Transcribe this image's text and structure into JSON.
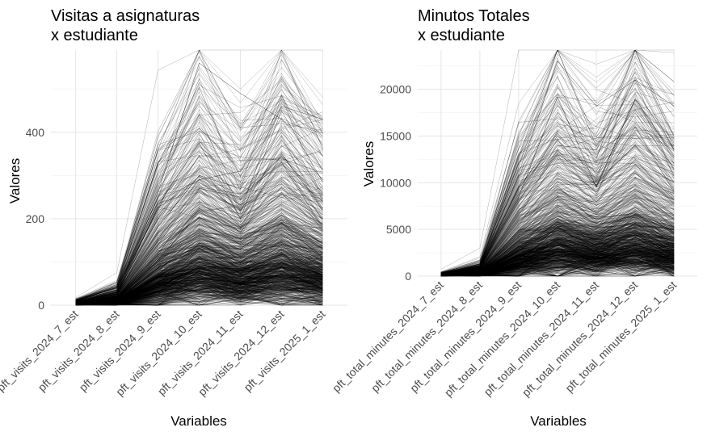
{
  "chart_data": [
    {
      "type": "line",
      "title": [
        "Visitas a asignaturas",
        "x estudiante"
      ],
      "xlabel": "Variables",
      "ylabel": "Valores",
      "categories": [
        "pft_visits_2024_7_est",
        "pft_visits_2024_8_est",
        "pft_visits_2024_9_est",
        "pft_visits_2024_10_est",
        "pft_visits_2024_11_est",
        "pft_visits_2024_12_est",
        "pft_visits_2025_1_est"
      ],
      "ylim": [
        0,
        590
      ],
      "yticks": [
        0,
        200,
        400
      ],
      "ytick_labels": [
        "0",
        "200",
        "400"
      ],
      "grid": true,
      "legend": "none",
      "line_color": "#000000",
      "n_lines_approx": 900,
      "series_representative": [
        {
          "values": [
            3,
            30,
            260,
            560,
            490,
            430,
            345
          ]
        },
        {
          "values": [
            3,
            35,
            240,
            290,
            310,
            460,
            430
          ]
        },
        {
          "values": [
            2,
            20,
            230,
            375,
            200,
            450,
            285
          ]
        },
        {
          "values": [
            2,
            25,
            180,
            300,
            270,
            400,
            290
          ]
        },
        {
          "values": [
            2,
            15,
            150,
            280,
            180,
            350,
            220
          ]
        },
        {
          "values": [
            2,
            18,
            140,
            270,
            250,
            330,
            180
          ]
        },
        {
          "values": [
            1,
            12,
            120,
            240,
            200,
            260,
            200
          ]
        }
      ],
      "band_median": [
        2,
        8,
        55,
        90,
        70,
        95,
        70
      ],
      "band_p90": [
        4,
        15,
        110,
        160,
        120,
        170,
        130
      ]
    },
    {
      "type": "line",
      "title": [
        "Minutos Totales",
        "x estudiante"
      ],
      "xlabel": "Variables",
      "ylabel": "Valores",
      "categories": [
        "pft_total_minutes_2024_7_est",
        "pft_total_minutes_2024_8_est",
        "pft_total_minutes_2024_9_est",
        "pft_total_minutes_2024_10_est",
        "pft_total_minutes_2024_11_est",
        "pft_total_minutes_2024_12_est",
        "pft_total_minutes_2025_1_est"
      ],
      "ylim": [
        0,
        24200
      ],
      "yticks": [
        0,
        5000,
        10000,
        15000,
        20000
      ],
      "ytick_labels": [
        "0",
        "5000",
        "10000",
        "15000",
        "20000"
      ],
      "grid": true,
      "legend": "none",
      "line_color": "#000000",
      "n_lines_approx": 900,
      "series_representative": [
        {
          "values": [
            150,
            1000,
            11000,
            23000,
            18200,
            21000,
            18200
          ]
        },
        {
          "values": [
            120,
            900,
            8500,
            19200,
            9500,
            19000,
            12800
          ]
        },
        {
          "values": [
            100,
            800,
            8000,
            14000,
            13500,
            21000,
            13500
          ]
        },
        {
          "values": [
            100,
            700,
            7500,
            13000,
            10500,
            17500,
            11500
          ]
        },
        {
          "values": [
            90,
            600,
            6500,
            12500,
            9000,
            16000,
            9000
          ]
        },
        {
          "values": [
            80,
            500,
            5500,
            11000,
            8000,
            12500,
            10000
          ]
        }
      ],
      "band_median": [
        60,
        250,
        2200,
        3500,
        2800,
        3800,
        2800
      ],
      "band_p90": [
        120,
        450,
        4500,
        7000,
        5200,
        7500,
        5500
      ]
    }
  ]
}
